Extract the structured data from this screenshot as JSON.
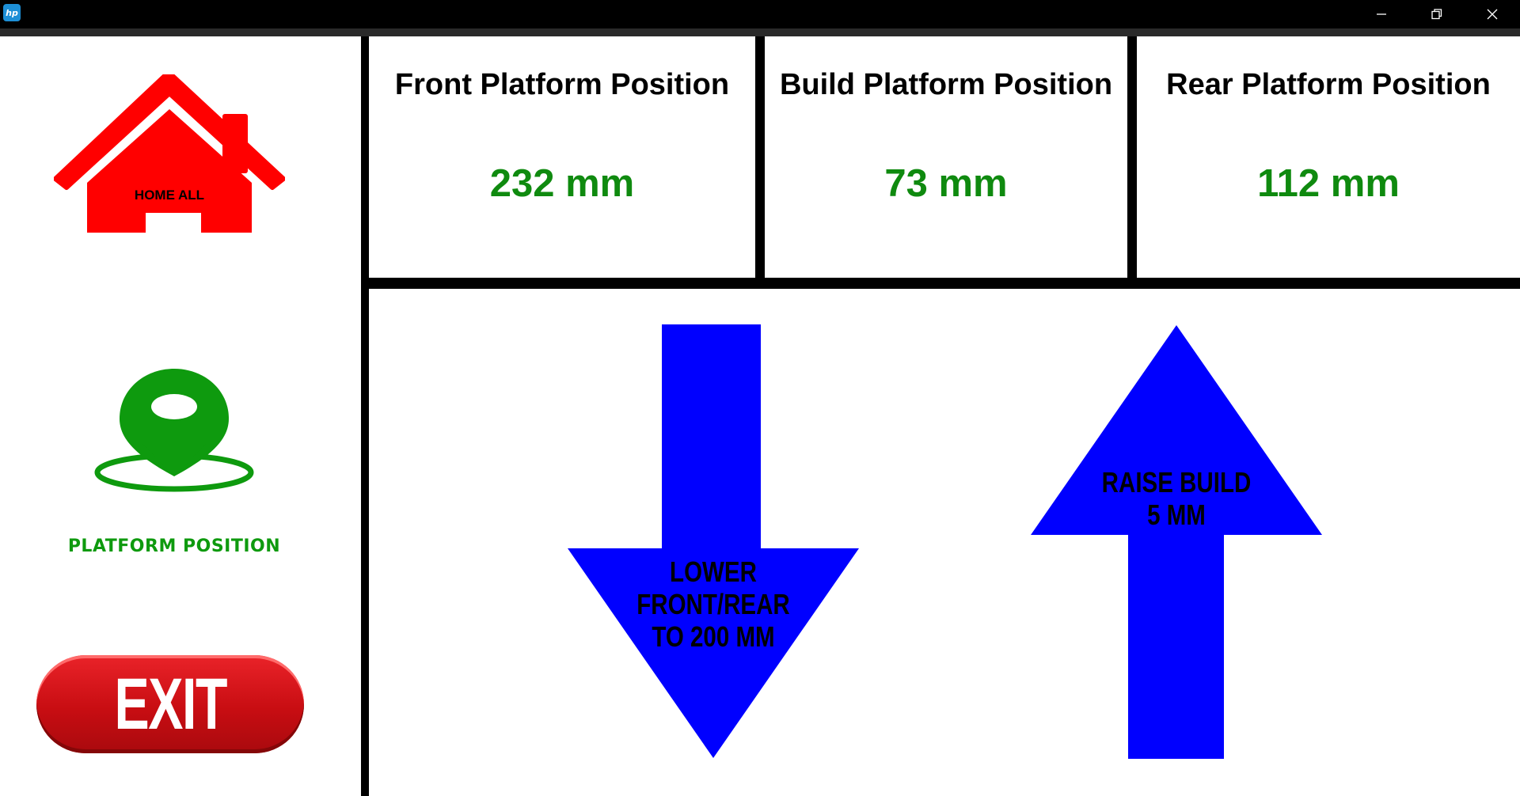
{
  "window": {
    "app_icon": "hp-logo-icon",
    "app_icon_text": "hp",
    "controls": [
      "minimize-icon",
      "restore-icon",
      "close-icon"
    ]
  },
  "sidebar": {
    "home": {
      "label": "HOME ALL",
      "icon": "house-icon",
      "color": "#ff0000"
    },
    "platform": {
      "label": "PLATFORM POSITION",
      "icon": "map-pin-icon",
      "color": "#0e9a0e"
    },
    "exit": {
      "label": "EXIT",
      "color": "#d41116"
    }
  },
  "positions": [
    {
      "title": "Front Platform Position",
      "value": "232 mm"
    },
    {
      "title": "Build Platform Position",
      "value": "73 mm"
    },
    {
      "title": "Rear Platform Position",
      "value": "112 mm"
    }
  ],
  "controls": {
    "lower": {
      "line1": "LOWER",
      "line2": "FRONT/REAR",
      "line3": "TO 200 MM",
      "icon": "arrow-down-icon"
    },
    "raise": {
      "line1": "RAISE BUILD",
      "line2": "5 MM",
      "icon": "arrow-up-icon"
    },
    "arrow_color": "#0000ff"
  },
  "colors": {
    "value_green": "#0f8a0f",
    "frame": "#000000"
  }
}
